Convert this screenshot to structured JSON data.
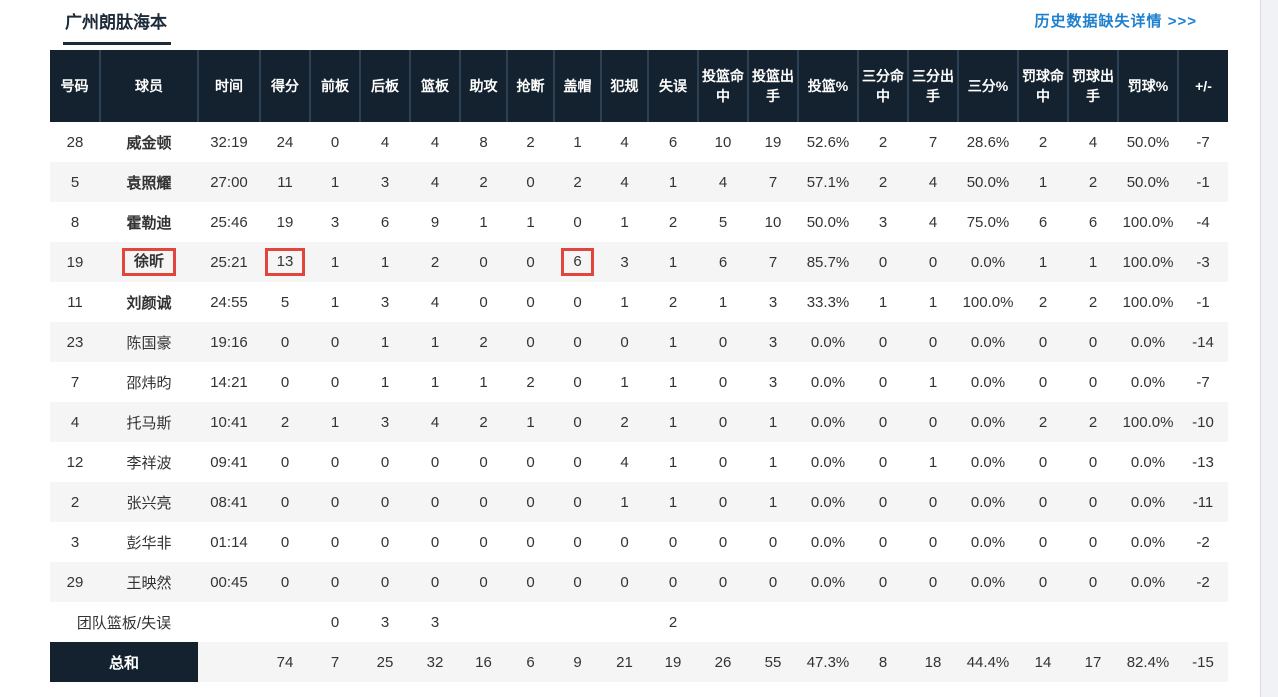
{
  "page": {
    "title": "广州朗肽海本",
    "history_link": "历史数据缺失详情 >>>"
  },
  "colors": {
    "header_bg": "#14222f",
    "highlight_red": "#e0453e",
    "link_blue": "#1e80cf",
    "row_alt_bg": "#f5f5f5"
  },
  "table": {
    "headers": [
      "号码",
      "球员",
      "时间",
      "得分",
      "前板",
      "后板",
      "篮板",
      "助攻",
      "抢断",
      "盖帽",
      "犯规",
      "失误",
      "投篮命中",
      "投篮出手",
      "投篮%",
      "三分命中",
      "三分出手",
      "三分%",
      "罚球命中",
      "罚球出手",
      "罚球%",
      "+/-"
    ],
    "col_keys": [
      "no",
      "player",
      "time",
      "pts",
      "oreb",
      "dreb",
      "reb",
      "ast",
      "stl",
      "blk",
      "pf",
      "to",
      "fgm",
      "fga",
      "fgp",
      "tpm",
      "tpa",
      "tpp",
      "ftm",
      "fta",
      "ftp",
      "plus-minus"
    ],
    "players": [
      {
        "no": "28",
        "name": "威金顿",
        "starter": true,
        "time": "32:19",
        "hl_name": false,
        "hl": [],
        "stats": [
          "24",
          "0",
          "4",
          "4",
          "8",
          "2",
          "1",
          "4",
          "6",
          "10",
          "19",
          "52.6%",
          "2",
          "7",
          "28.6%",
          "2",
          "4",
          "50.0%",
          "-7"
        ]
      },
      {
        "no": "5",
        "name": "袁照耀",
        "starter": true,
        "time": "27:00",
        "hl_name": false,
        "hl": [],
        "stats": [
          "11",
          "1",
          "3",
          "4",
          "2",
          "0",
          "2",
          "4",
          "1",
          "4",
          "7",
          "57.1%",
          "2",
          "4",
          "50.0%",
          "1",
          "2",
          "50.0%",
          "-1"
        ]
      },
      {
        "no": "8",
        "name": "霍勒迪",
        "starter": true,
        "time": "25:46",
        "hl_name": false,
        "hl": [],
        "stats": [
          "19",
          "3",
          "6",
          "9",
          "1",
          "1",
          "0",
          "1",
          "2",
          "5",
          "10",
          "50.0%",
          "3",
          "4",
          "75.0%",
          "6",
          "6",
          "100.0%",
          "-4"
        ]
      },
      {
        "no": "19",
        "name": "徐昕",
        "starter": true,
        "time": "25:21",
        "hl_name": true,
        "hl": [
          0,
          6
        ],
        "stats": [
          "13",
          "1",
          "1",
          "2",
          "0",
          "0",
          "6",
          "3",
          "1",
          "6",
          "7",
          "85.7%",
          "0",
          "0",
          "0.0%",
          "1",
          "1",
          "100.0%",
          "-3"
        ]
      },
      {
        "no": "11",
        "name": "刘颜诚",
        "starter": true,
        "time": "24:55",
        "hl_name": false,
        "hl": [],
        "stats": [
          "5",
          "1",
          "3",
          "4",
          "0",
          "0",
          "0",
          "1",
          "2",
          "1",
          "3",
          "33.3%",
          "1",
          "1",
          "100.0%",
          "2",
          "2",
          "100.0%",
          "-1"
        ]
      },
      {
        "no": "23",
        "name": "陈国豪",
        "starter": false,
        "time": "19:16",
        "hl_name": false,
        "hl": [],
        "stats": [
          "0",
          "0",
          "1",
          "1",
          "2",
          "0",
          "0",
          "0",
          "1",
          "0",
          "3",
          "0.0%",
          "0",
          "0",
          "0.0%",
          "0",
          "0",
          "0.0%",
          "-14"
        ]
      },
      {
        "no": "7",
        "name": "邵炜昀",
        "starter": false,
        "time": "14:21",
        "hl_name": false,
        "hl": [],
        "stats": [
          "0",
          "0",
          "1",
          "1",
          "1",
          "2",
          "0",
          "1",
          "1",
          "0",
          "3",
          "0.0%",
          "0",
          "1",
          "0.0%",
          "0",
          "0",
          "0.0%",
          "-7"
        ]
      },
      {
        "no": "4",
        "name": "托马斯",
        "starter": false,
        "time": "10:41",
        "hl_name": false,
        "hl": [],
        "stats": [
          "2",
          "1",
          "3",
          "4",
          "2",
          "1",
          "0",
          "2",
          "1",
          "0",
          "1",
          "0.0%",
          "0",
          "0",
          "0.0%",
          "2",
          "2",
          "100.0%",
          "-10"
        ]
      },
      {
        "no": "12",
        "name": "李祥波",
        "starter": false,
        "time": "09:41",
        "hl_name": false,
        "hl": [],
        "stats": [
          "0",
          "0",
          "0",
          "0",
          "0",
          "0",
          "0",
          "4",
          "1",
          "0",
          "1",
          "0.0%",
          "0",
          "1",
          "0.0%",
          "0",
          "0",
          "0.0%",
          "-13"
        ]
      },
      {
        "no": "2",
        "name": "张兴亮",
        "starter": false,
        "time": "08:41",
        "hl_name": false,
        "hl": [],
        "stats": [
          "0",
          "0",
          "0",
          "0",
          "0",
          "0",
          "0",
          "1",
          "1",
          "0",
          "1",
          "0.0%",
          "0",
          "0",
          "0.0%",
          "0",
          "0",
          "0.0%",
          "-11"
        ]
      },
      {
        "no": "3",
        "name": "彭华非",
        "starter": false,
        "time": "01:14",
        "hl_name": false,
        "hl": [],
        "stats": [
          "0",
          "0",
          "0",
          "0",
          "0",
          "0",
          "0",
          "0",
          "0",
          "0",
          "0",
          "0.0%",
          "0",
          "0",
          "0.0%",
          "0",
          "0",
          "0.0%",
          "-2"
        ]
      },
      {
        "no": "29",
        "name": "王映然",
        "starter": false,
        "time": "00:45",
        "hl_name": false,
        "hl": [],
        "stats": [
          "0",
          "0",
          "0",
          "0",
          "0",
          "0",
          "0",
          "0",
          "0",
          "0",
          "0",
          "0.0%",
          "0",
          "0",
          "0.0%",
          "0",
          "0",
          "0.0%",
          "-2"
        ]
      }
    ],
    "team_row": {
      "label": "团队篮板/失误",
      "stats": [
        "",
        "0",
        "3",
        "3",
        "",
        "",
        "",
        "",
        "2",
        "",
        "",
        "",
        "",
        "",
        "",
        "",
        "",
        "",
        ""
      ]
    },
    "total_row": {
      "label": "总和",
      "stats": [
        "74",
        "7",
        "25",
        "32",
        "16",
        "6",
        "9",
        "21",
        "19",
        "26",
        "55",
        "47.3%",
        "8",
        "18",
        "44.4%",
        "14",
        "17",
        "82.4%",
        "-15"
      ]
    }
  }
}
